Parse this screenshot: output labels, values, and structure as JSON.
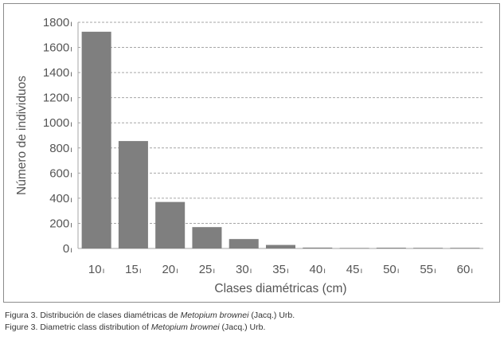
{
  "chart_data": {
    "type": "bar",
    "categories": [
      "10",
      "15",
      "20",
      "25",
      "30",
      "35",
      "40",
      "45",
      "50",
      "55",
      "60"
    ],
    "values": [
      1725,
      855,
      370,
      170,
      75,
      28,
      7,
      4,
      6,
      5,
      5
    ],
    "ylabel": "Número de individuos",
    "xlabel": "Clases diamétricas (cm)",
    "ylim": [
      0,
      1800
    ],
    "yticks": [
      0,
      200,
      400,
      600,
      800,
      1000,
      1200,
      1400,
      1600,
      1800
    ],
    "grid": true,
    "legend": "none"
  },
  "colors": {
    "bar": "#7f7f7f",
    "grid": "#a6a6a6",
    "axis_text": "#555555"
  },
  "caption": {
    "es_prefix": "Figura 3. Distribución de clases diamétricas de ",
    "es_species": "Metopium brownei",
    "es_suffix": " (Jacq.) Urb.",
    "en_prefix": "Figure 3. Diametric class distribution of ",
    "en_species": "Metopium brownei",
    "en_suffix": " (Jacq.) Urb."
  }
}
